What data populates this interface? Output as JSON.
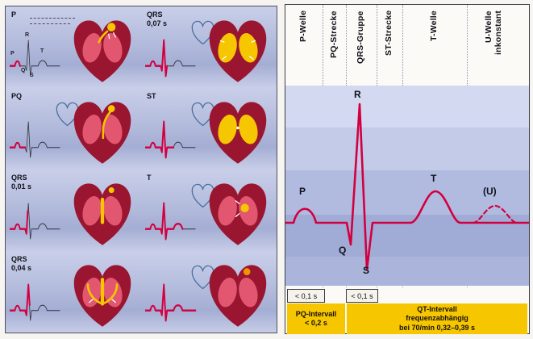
{
  "left_panel": {
    "cells": [
      {
        "label": "P",
        "duration": "",
        "phase": "p"
      },
      {
        "label": "QRS",
        "duration": "0,07 s",
        "phase": "qrs3"
      },
      {
        "label": "PQ",
        "duration": "",
        "phase": "pq"
      },
      {
        "label": "ST",
        "duration": "",
        "phase": "st"
      },
      {
        "label": "QRS",
        "duration": "0,01 s",
        "phase": "qrs1"
      },
      {
        "label": "T",
        "duration": "",
        "phase": "t"
      },
      {
        "label": "QRS",
        "duration": "0,04 s",
        "phase": "qrs2"
      },
      {
        "label": "",
        "duration": "",
        "phase": "full"
      }
    ],
    "cell1_wave_labels": {
      "r": "R",
      "p": "P",
      "t": "T",
      "q": "Q",
      "s": "S"
    }
  },
  "right_panel": {
    "columns": [
      "P-Welle",
      "PQ-Strecke",
      "QRS-Gruppe",
      "ST-Strecke",
      "T-Welle",
      "U-Welle inkonstant"
    ],
    "wave_labels": {
      "p": "P",
      "q": "Q",
      "r": "R",
      "s": "S",
      "t": "T",
      "u": "(U)"
    },
    "durations": {
      "p_wave": "< 0,1 s",
      "qrs": "< 0,1 s"
    },
    "intervals": {
      "pq": [
        "PQ-Intervall",
        "< 0,2 s"
      ],
      "qt": [
        "QT-Intervall",
        "frequenzabhängig",
        "bei 70/min  0,32–0,39 s"
      ]
    }
  },
  "colors": {
    "ecg_red": "#d20040",
    "accent_yellow": "#f6c600",
    "heart_dark": "#9a1530",
    "heart_light": "#e25670",
    "outline_blue": "#4a6fa0",
    "panel_blue": "#b8c0e0"
  }
}
